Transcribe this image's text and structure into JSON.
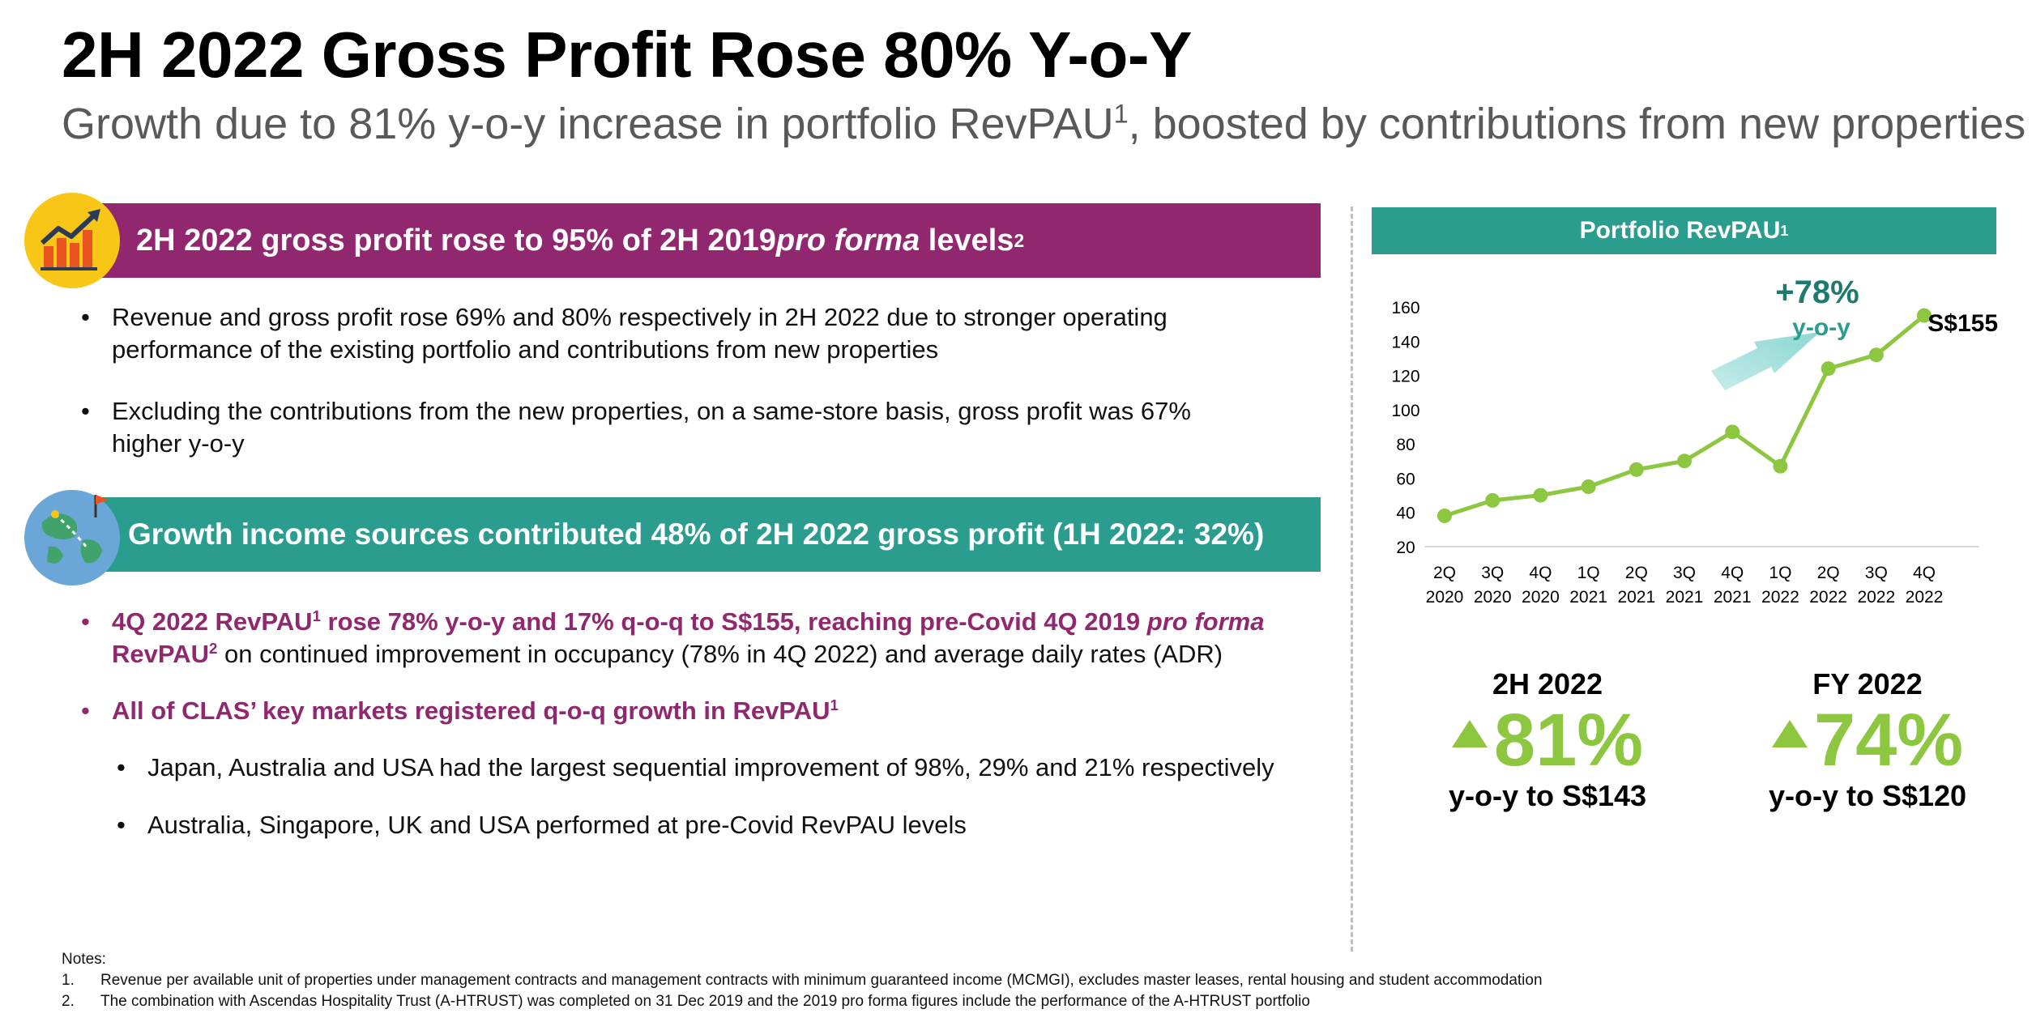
{
  "header": {
    "title": "2H 2022 Gross Profit Rose 80% Y-o-Y",
    "subtitle_pre": "Growth due to 81% y-o-y increase in portfolio RevPAU",
    "subtitle_sup": "1",
    "subtitle_post": ", boosted by contributions from new properties"
  },
  "section1": {
    "banner_pre": "2H 2022 gross profit rose to 95% of 2H 2019 ",
    "banner_em": "pro forma",
    "banner_post": " levels",
    "banner_sup": "2",
    "icon": "growth-chart-icon",
    "bullets": [
      {
        "line1": "Revenue and gross profit rose 69% and 80% respectively in 2H 2022 due to stronger operating",
        "line2": "performance of the existing portfolio and contributions from new properties"
      },
      {
        "line1": "Excluding the contributions from the new properties, on a same-store basis, gross profit was 67%",
        "line2": "higher y-o-y"
      }
    ]
  },
  "section2": {
    "banner": "Growth income sources contributed 48% of 2H 2022 gross profit (1H 2022: 32%)",
    "icon": "globe-map-icon",
    "b1_bold1": "4Q 2022 RevPAU",
    "b1_sup1": "1",
    "b1_bold2": " rose 78% y-o-y and 17% q-o-q to S$155, reaching pre-Covid 4Q 2019 ",
    "b1_em": "pro forma",
    "b1_bold3": "RevPAU",
    "b1_sup2": "2",
    "b1_rest": " on continued improvement in occupancy (78% in 4Q 2022) and average daily rates (ADR)",
    "b2_bold": "All of CLAS’ key markets registered q-o-q growth in RevPAU",
    "b2_sup": "1",
    "sub_bullets": [
      "Japan, Australia and USA had the largest sequential improvement of 98%, 29% and 21% respectively",
      "Australia, Singapore, UK and USA performed at pre-Covid RevPAU levels"
    ]
  },
  "chart_panel": {
    "header": "Portfolio RevPAU",
    "header_sup": "1",
    "growth_label": "+78%",
    "growth_sub": "y-o-y",
    "end_label": "S$155"
  },
  "chart_data": {
    "type": "line",
    "title": "Portfolio RevPAU",
    "categories": [
      [
        "2Q",
        "2020"
      ],
      [
        "3Q",
        "2020"
      ],
      [
        "4Q",
        "2020"
      ],
      [
        "1Q",
        "2021"
      ],
      [
        "2Q",
        "2021"
      ],
      [
        "3Q",
        "2021"
      ],
      [
        "4Q",
        "2021"
      ],
      [
        "1Q",
        "2022"
      ],
      [
        "2Q",
        "2022"
      ],
      [
        "3Q",
        "2022"
      ],
      [
        "4Q",
        "2022"
      ]
    ],
    "values": [
      38,
      47,
      50,
      55,
      65,
      70,
      87,
      67,
      124,
      132,
      155
    ],
    "y_ticks": [
      20,
      40,
      60,
      80,
      100,
      120,
      140,
      160
    ],
    "ylim": [
      20,
      165
    ],
    "grid": false,
    "color": "#8dc63f"
  },
  "stats": [
    {
      "period": "2H 2022",
      "value": "81%",
      "desc": "y-o-y to S$143"
    },
    {
      "period": "FY 2022",
      "value": "74%",
      "desc": "y-o-y to S$120"
    }
  ],
  "notes": {
    "heading": "Notes:",
    "items": [
      {
        "num": "1.",
        "text": "Revenue per available unit of properties under management contracts and management contracts with minimum guaranteed income (MCMGI), excludes master leases, rental housing and student accommodation"
      },
      {
        "num": "2.",
        "text": "The combination with Ascendas Hospitality Trust (A-HTRUST) was completed on 31 Dec 2019 and the 2019 pro forma figures include the performance of the A-HTRUST portfolio"
      }
    ]
  }
}
